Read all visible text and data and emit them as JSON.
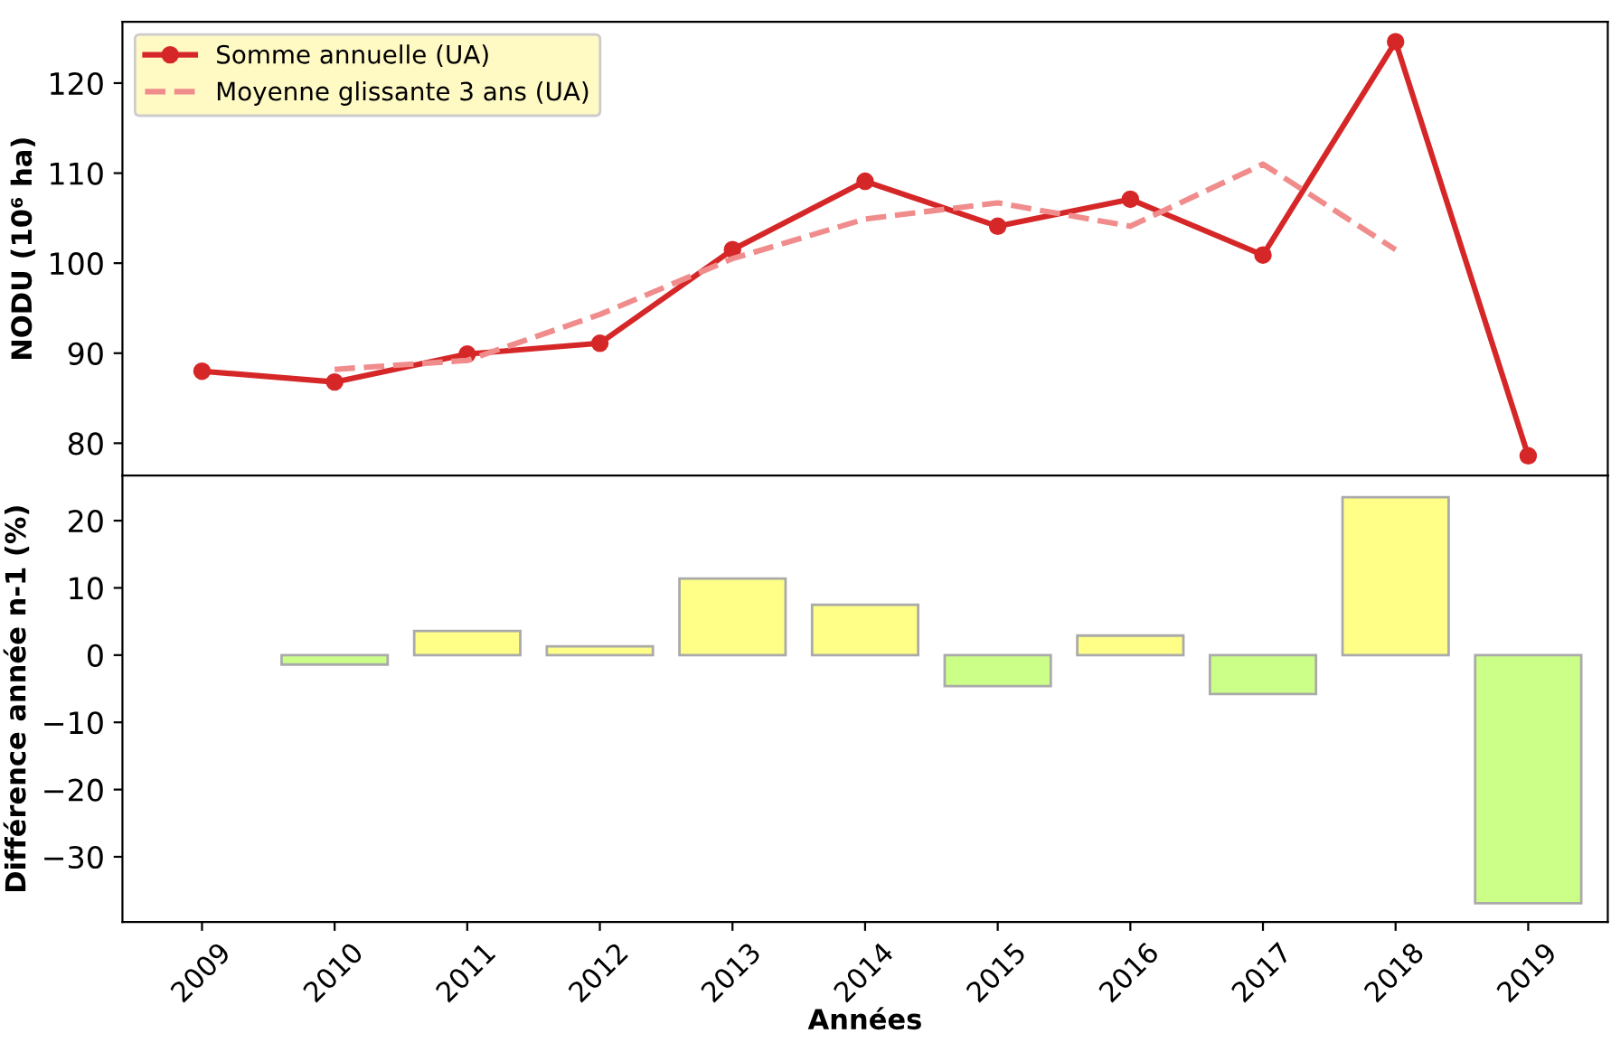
{
  "chart_data": [
    {
      "type": "line",
      "ylabel": "NODU (10⁶ ha)",
      "categories": [
        "2009",
        "2010",
        "2011",
        "2012",
        "2013",
        "2014",
        "2015",
        "2016",
        "2017",
        "2018",
        "2019"
      ],
      "ylim": [
        76.4,
        126.8
      ],
      "yticks": [
        80,
        90,
        100,
        110,
        120
      ],
      "tick_labels": "y",
      "legend": "top left",
      "grid": false,
      "series": [
        {
          "name": "Somme annuelle (UA)",
          "color": "#d62728",
          "marker": "circle",
          "line_style": "solid",
          "values": [
            88.0,
            86.8,
            89.9,
            91.1,
            101.5,
            109.1,
            104.1,
            107.1,
            100.9,
            124.6,
            78.6
          ]
        },
        {
          "name": "Moyenne glissante 3 ans (UA)",
          "color": "#f08c8c",
          "marker": "none",
          "line_style": "dashed",
          "values": [
            null,
            88.2,
            89.2,
            94.3,
            100.5,
            104.9,
            106.7,
            104.1,
            111.0,
            101.5,
            null
          ]
        }
      ]
    },
    {
      "type": "bar",
      "xlabel": "Années",
      "ylabel": "Différence année n-1 (%)",
      "categories": [
        "2009",
        "2010",
        "2011",
        "2012",
        "2013",
        "2014",
        "2015",
        "2016",
        "2017",
        "2018",
        "2019"
      ],
      "ylim": [
        -39.7,
        26.7
      ],
      "yticks": [
        {
          "value": -30,
          "label": "−30"
        },
        {
          "value": -20,
          "label": "−20"
        },
        {
          "value": -10,
          "label": "−10"
        },
        0,
        10,
        20
      ],
      "grid": false,
      "values": [
        null,
        -1.4,
        3.6,
        1.3,
        11.4,
        7.5,
        -4.6,
        2.9,
        -5.8,
        23.5,
        -36.9
      ],
      "colors": [
        "#ffff88",
        "#ccff88",
        "#ffff88",
        "#ffff88",
        "#ffff88",
        "#ffff88",
        "#ccff88",
        "#ffff88",
        "#ccff88",
        "#ffff88",
        "#ccff88"
      ]
    }
  ]
}
